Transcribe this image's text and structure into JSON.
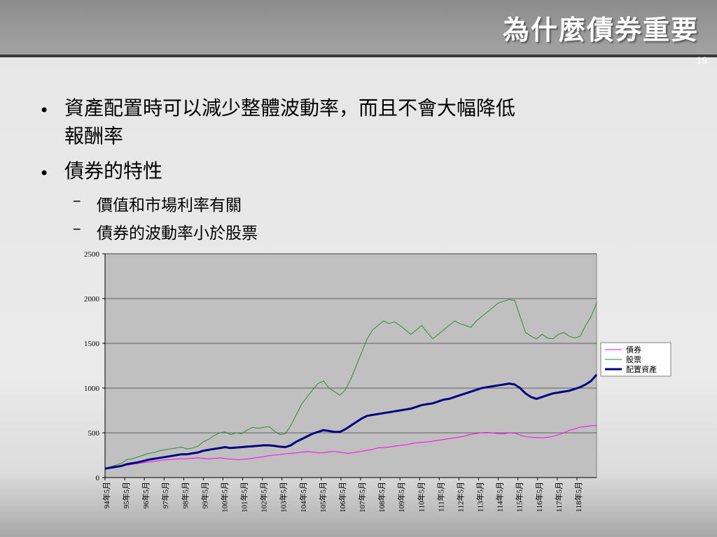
{
  "slide": {
    "title": "為什麼債券重要",
    "page_number": "19",
    "bullets": [
      {
        "text_line1": "資產配置時可以減少整體波動率，而且不會大幅降低",
        "text_line2": "報酬率"
      },
      {
        "text_line1": "債券的特性"
      }
    ],
    "sub_bullets": [
      "價值和市場利率有關",
      "債券的波動率小於股票"
    ],
    "bullet_symbol": "•",
    "dash_symbol": "–"
  },
  "chart_data": {
    "type": "line",
    "ylim": [
      0,
      2500
    ],
    "yticks": [
      0,
      500,
      1000,
      1500,
      2000,
      2500
    ],
    "x_tick_labels": [
      "94年5月",
      "95年5月",
      "96年5月",
      "97年5月",
      "98年5月",
      "99年5月",
      "100年5月",
      "101年5月",
      "102年5月",
      "103年5月",
      "104年5月",
      "105年5月",
      "106年5月",
      "107年5月",
      "108年5月",
      "109年5月",
      "110年5月",
      "111年5月",
      "112年5月",
      "113年5月",
      "114年5月",
      "115年5月",
      "116年5月",
      "117年5月",
      "118年5月"
    ],
    "grid": true,
    "legend_position": "right",
    "plot_bg": "#c0c0c0",
    "series": [
      {
        "name": "債券",
        "color": "#ff00ff",
        "values": [
          100,
          110,
          120,
          135,
          140,
          150,
          160,
          170,
          175,
          185,
          195,
          200,
          205,
          210,
          210,
          215,
          220,
          215,
          210,
          215,
          220,
          210,
          205,
          200,
          205,
          210,
          220,
          230,
          240,
          250,
          255,
          265,
          270,
          275,
          285,
          290,
          285,
          275,
          280,
          290,
          290,
          280,
          270,
          280,
          290,
          300,
          310,
          330,
          335,
          340,
          350,
          360,
          365,
          380,
          390,
          395,
          400,
          410,
          420,
          430,
          440,
          450,
          460,
          480,
          490,
          500,
          505,
          500,
          490,
          490,
          500,
          495,
          470,
          455,
          450,
          445,
          445,
          455,
          470,
          490,
          520,
          540,
          560,
          570,
          580,
          580
        ]
      },
      {
        "name": "股票",
        "color": "#2e8b2e",
        "values": [
          100,
          120,
          140,
          160,
          200,
          210,
          230,
          250,
          270,
          280,
          300,
          310,
          320,
          330,
          340,
          320,
          330,
          350,
          400,
          430,
          470,
          500,
          510,
          480,
          500,
          490,
          530,
          560,
          550,
          560,
          570,
          520,
          480,
          490,
          580,
          700,
          820,
          900,
          980,
          1050,
          1080,
          1000,
          960,
          920,
          980,
          1100,
          1250,
          1400,
          1550,
          1650,
          1700,
          1750,
          1720,
          1740,
          1700,
          1650,
          1600,
          1650,
          1700,
          1620,
          1550,
          1600,
          1650,
          1700,
          1750,
          1720,
          1700,
          1680,
          1750,
          1800,
          1850,
          1900,
          1950,
          1970,
          1990,
          1980,
          1800,
          1620,
          1580,
          1550,
          1600,
          1560,
          1550,
          1600,
          1620,
          1580,
          1560,
          1580,
          1700,
          1800,
          1950
        ]
      },
      {
        "name": "配置資產",
        "color": "#000080",
        "values": [
          100,
          110,
          120,
          130,
          150,
          160,
          170,
          185,
          200,
          210,
          220,
          230,
          240,
          250,
          260,
          260,
          270,
          280,
          300,
          310,
          320,
          330,
          340,
          330,
          335,
          340,
          345,
          350,
          355,
          360,
          360,
          355,
          345,
          340,
          360,
          400,
          430,
          460,
          490,
          510,
          530,
          520,
          510,
          510,
          540,
          580,
          620,
          660,
          690,
          700,
          710,
          720,
          730,
          740,
          750,
          760,
          770,
          790,
          810,
          820,
          830,
          850,
          870,
          880,
          900,
          920,
          940,
          960,
          980,
          1000,
          1010,
          1020,
          1030,
          1040,
          1050,
          1040,
          1000,
          940,
          900,
          880,
          900,
          920,
          940,
          950,
          960,
          970,
          990,
          1010,
          1040,
          1080,
          1150
        ]
      }
    ]
  }
}
